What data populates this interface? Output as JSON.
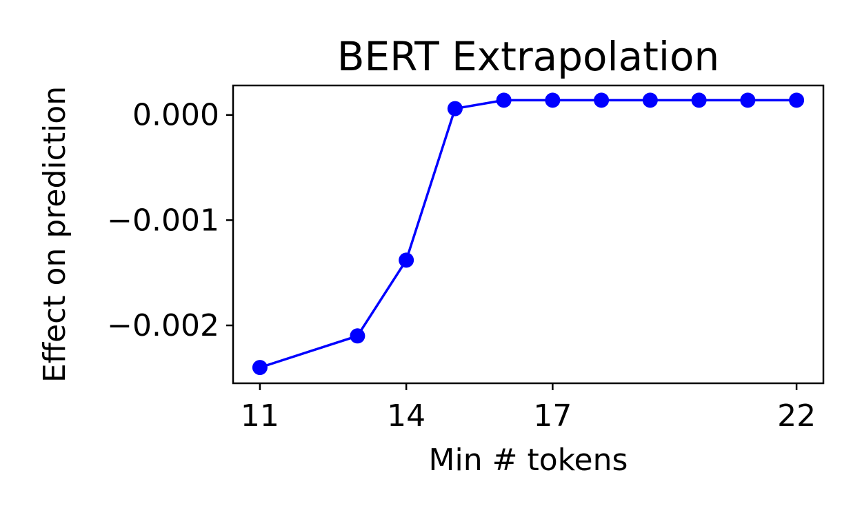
{
  "chart_data": {
    "type": "line",
    "title": "BERT Extrapolation",
    "xlabel": "Min # tokens",
    "ylabel": "Effect on prediction",
    "x_ticks": [
      11,
      14,
      17,
      22
    ],
    "x_tick_labels": [
      "11",
      "14",
      "17",
      "22"
    ],
    "y_ticks": [
      0.0,
      -0.001,
      -0.002
    ],
    "y_tick_labels": [
      "0.000",
      "−0.001",
      "−0.002"
    ],
    "xlim": [
      10.45,
      22.55
    ],
    "ylim": [
      -0.00255,
      0.00028
    ],
    "grid": false,
    "series": [
      {
        "color": "#0000ff",
        "marker": "circle",
        "x": [
          11,
          13,
          14,
          15,
          16,
          17,
          18,
          19,
          20,
          21,
          22
        ],
        "y": [
          -0.0024,
          -0.0021,
          -0.00138,
          6e-05,
          0.00014,
          0.00014,
          0.00014,
          0.00014,
          0.00014,
          0.00014,
          0.00014
        ]
      }
    ]
  }
}
